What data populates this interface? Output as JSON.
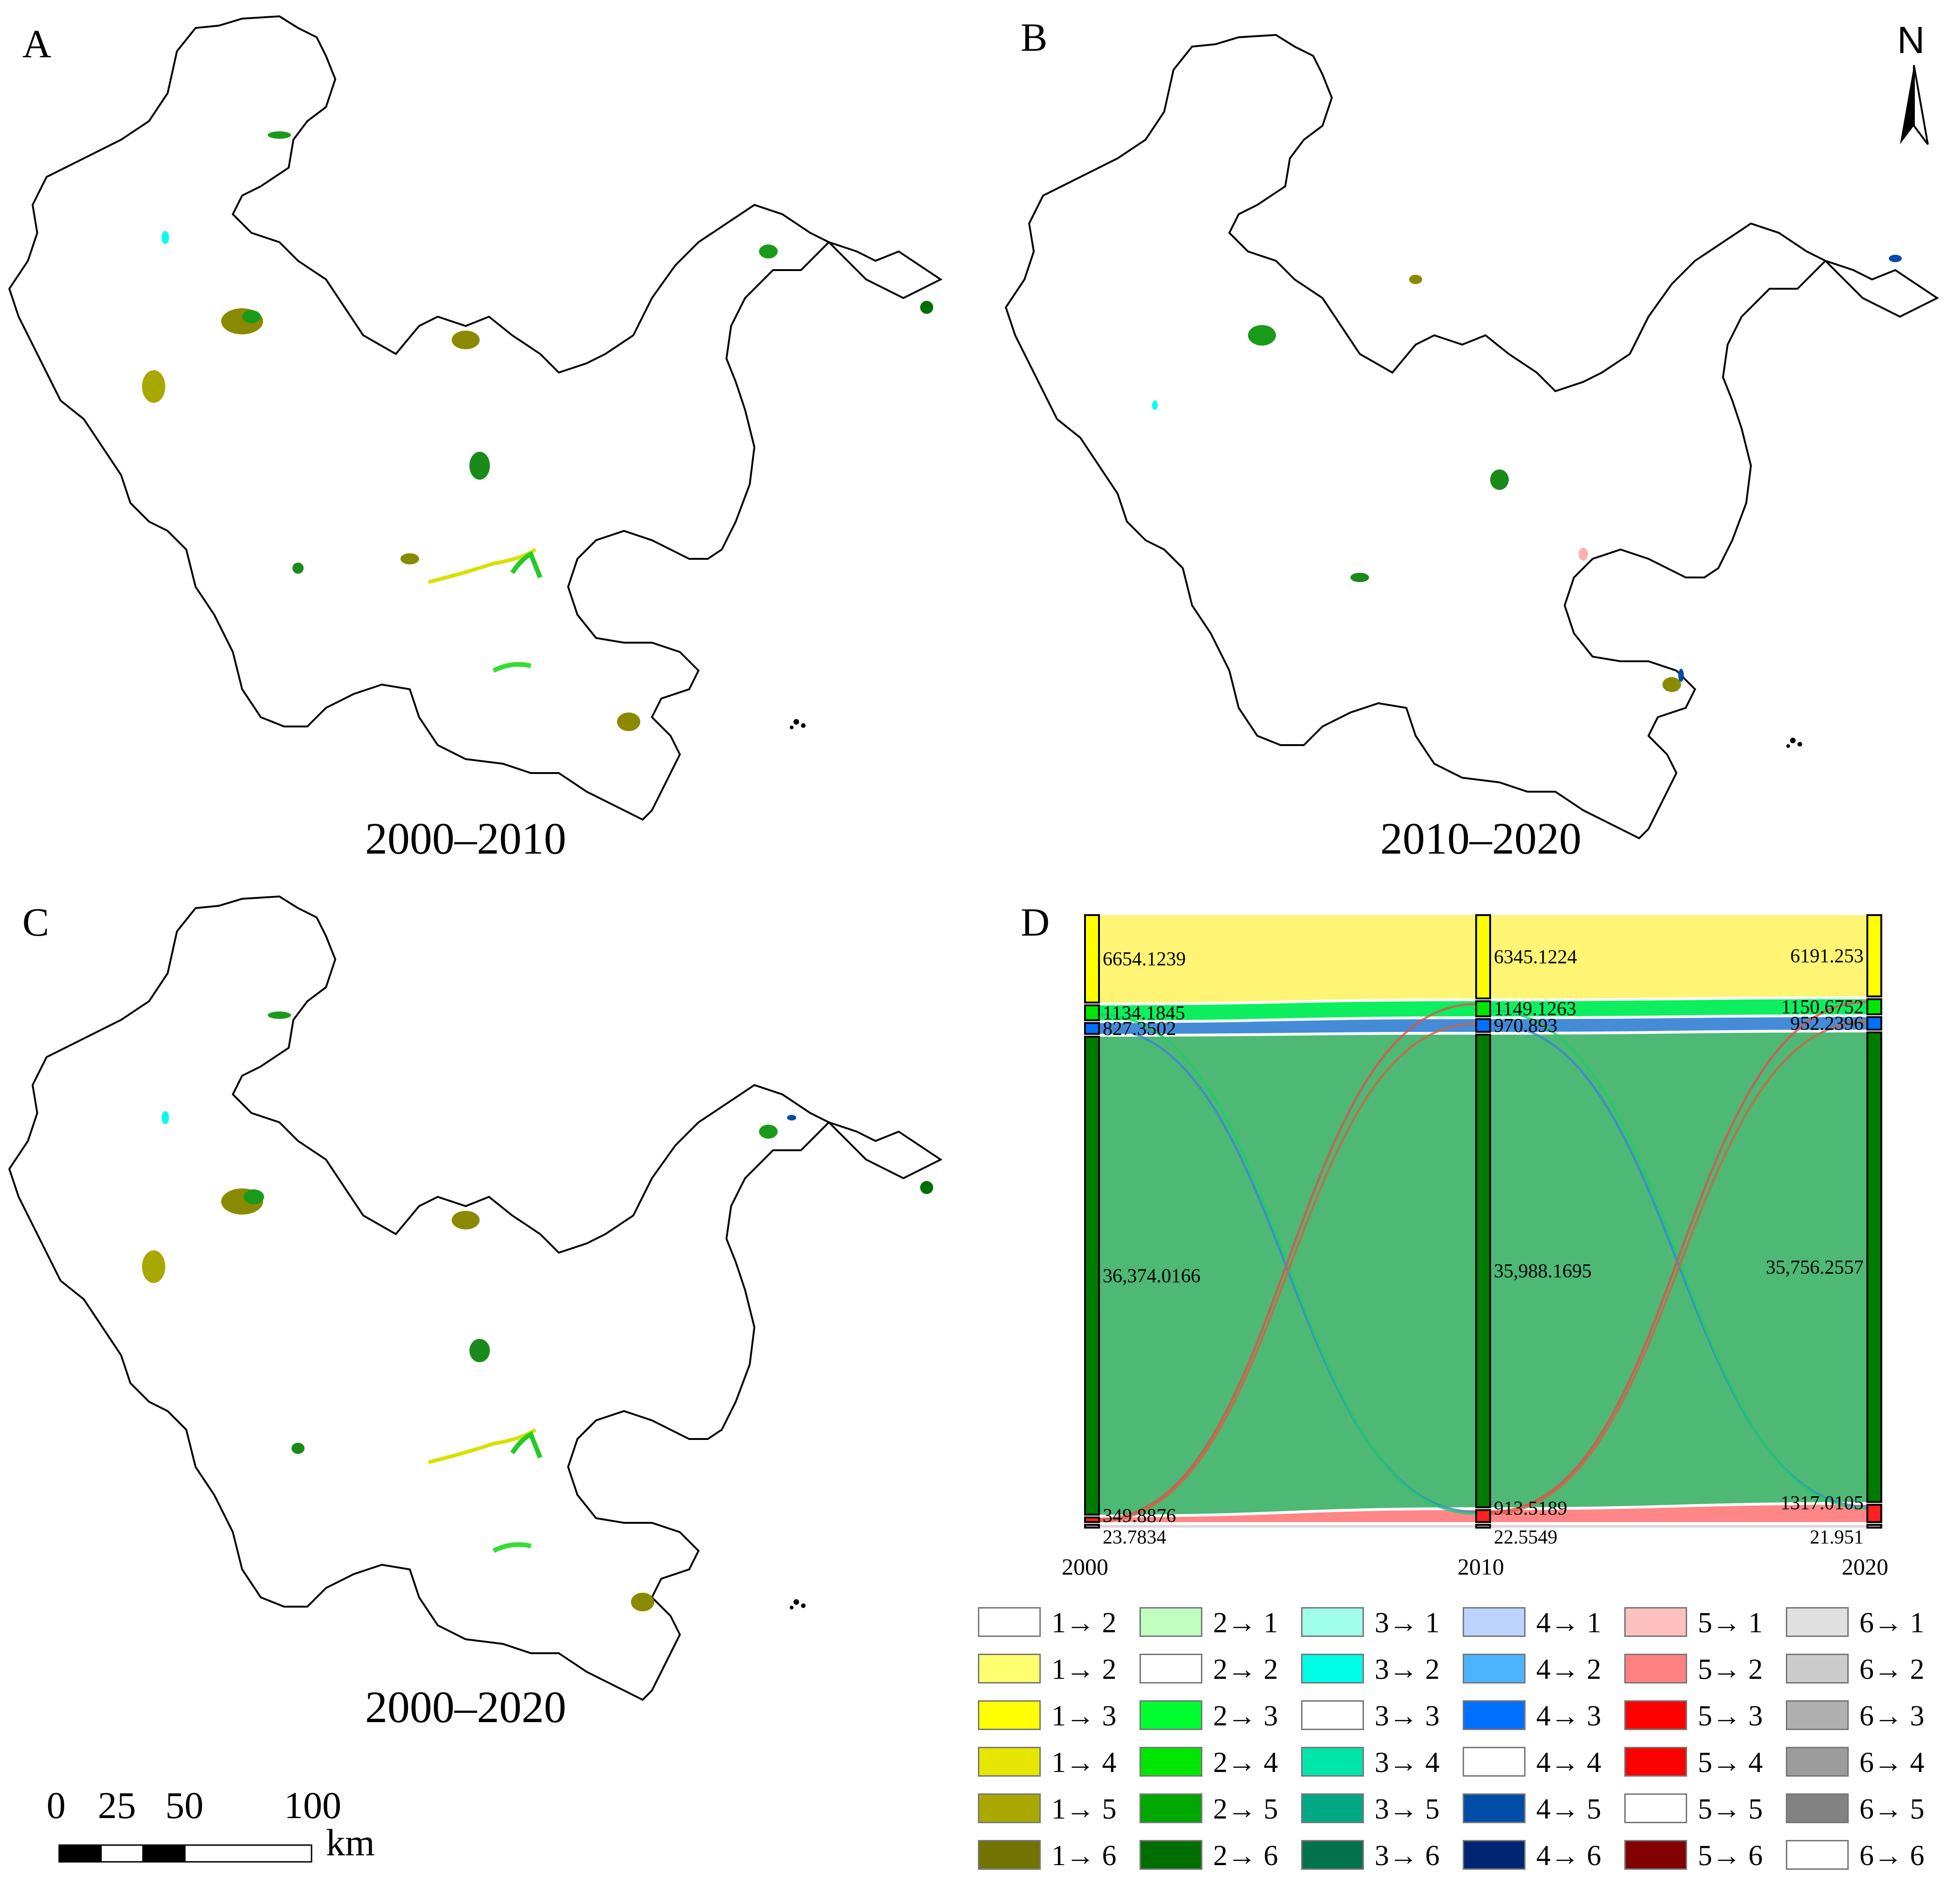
{
  "panels": {
    "A": {
      "letter": "A",
      "period": "2000–2010"
    },
    "B": {
      "letter": "B",
      "period": "2010–2020"
    },
    "C": {
      "letter": "C",
      "period": "2000–2020"
    },
    "D": {
      "letter": "D"
    }
  },
  "north_arrow": {
    "label": "N"
  },
  "scale_bar": {
    "ticks": [
      "0",
      "25",
      "50",
      "100"
    ],
    "unit": "km"
  },
  "chart_data": {
    "type": "sankey",
    "years": [
      "2000",
      "2010",
      "2020"
    ],
    "nodes": {
      "2000": [
        {
          "class": 1,
          "value": "6654.1239"
        },
        {
          "class": 2,
          "value": "1134.1845"
        },
        {
          "class": 3,
          "value": "827.3502"
        },
        {
          "class": 4,
          "value": "36,374.0166"
        },
        {
          "class": 5,
          "value": "349.8876"
        },
        {
          "class": 6,
          "value": "23.7834"
        }
      ],
      "2010": [
        {
          "class": 1,
          "value": "6345.1224"
        },
        {
          "class": 2,
          "value": "1149.1263"
        },
        {
          "class": 3,
          "value": "970.893"
        },
        {
          "class": 4,
          "value": "35,988.1695"
        },
        {
          "class": 5,
          "value": "913.5189"
        },
        {
          "class": 6,
          "value": "22.5549"
        }
      ],
      "2020": [
        {
          "class": 1,
          "value": "6191.253"
        },
        {
          "class": 2,
          "value": "1150.6752"
        },
        {
          "class": 3,
          "value": "952.2396"
        },
        {
          "class": 4,
          "value": "35,756.2557"
        },
        {
          "class": 5,
          "value": "1317.0105"
        },
        {
          "class": 6,
          "value": "21.951"
        }
      ]
    },
    "node_colors": [
      "#ffff00",
      "#00e600",
      "#0070ff",
      "#007a00",
      "#ff2020",
      "#bbbbbb"
    ],
    "band_colors": [
      "#fff36b",
      "#00ee55",
      "#3a86d6",
      "#45b46e",
      "#ff8080",
      "#d8d8d8"
    ]
  },
  "legend": [
    {
      "label": "1→ 2",
      "color": "#ffffff"
    },
    {
      "label": "2→ 1",
      "color": "#c0ffc0"
    },
    {
      "label": "3→ 1",
      "color": "#a0ffe8"
    },
    {
      "label": "4→ 1",
      "color": "#bcd4ff"
    },
    {
      "label": "5→ 1",
      "color": "#ffc0c0"
    },
    {
      "label": "6→ 1",
      "color": "#e0e0e0"
    },
    {
      "label": "1→ 2",
      "color": "#ffff70"
    },
    {
      "label": "2→ 2",
      "color": "#ffffff"
    },
    {
      "label": "3→ 2",
      "color": "#00ffe6"
    },
    {
      "label": "4→ 2",
      "color": "#4ab4ff"
    },
    {
      "label": "5→ 2",
      "color": "#ff8080"
    },
    {
      "label": "6→ 2",
      "color": "#cccccc"
    },
    {
      "label": "1→ 3",
      "color": "#ffff00"
    },
    {
      "label": "2→ 3",
      "color": "#00ff30"
    },
    {
      "label": "3→ 3",
      "color": "#ffffff"
    },
    {
      "label": "4→ 3",
      "color": "#0070ff"
    },
    {
      "label": "5→ 3",
      "color": "#ff0000"
    },
    {
      "label": "6→ 3",
      "color": "#b0b0b0"
    },
    {
      "label": "1→ 4",
      "color": "#e6e600"
    },
    {
      "label": "2→ 4",
      "color": "#00e600"
    },
    {
      "label": "3→ 4",
      "color": "#00e6a8"
    },
    {
      "label": "4→ 4",
      "color": "#ffffff"
    },
    {
      "label": "5→ 4",
      "color": "#ff0000"
    },
    {
      "label": "6→ 4",
      "color": "#9c9c9c"
    },
    {
      "label": "1→ 5",
      "color": "#a8a800"
    },
    {
      "label": "2→ 5",
      "color": "#00a800"
    },
    {
      "label": "3→ 5",
      "color": "#00a884"
    },
    {
      "label": "4→ 5",
      "color": "#004da8"
    },
    {
      "label": "5→ 5",
      "color": "#ffffff"
    },
    {
      "label": "6→ 5",
      "color": "#828282"
    },
    {
      "label": "1→ 6",
      "color": "#737300"
    },
    {
      "label": "2→ 6",
      "color": "#006e00"
    },
    {
      "label": "3→ 6",
      "color": "#00734c"
    },
    {
      "label": "4→ 6",
      "color": "#002673"
    },
    {
      "label": "5→ 6",
      "color": "#820000"
    },
    {
      "label": "6→ 6",
      "color": "#ffffff"
    }
  ]
}
